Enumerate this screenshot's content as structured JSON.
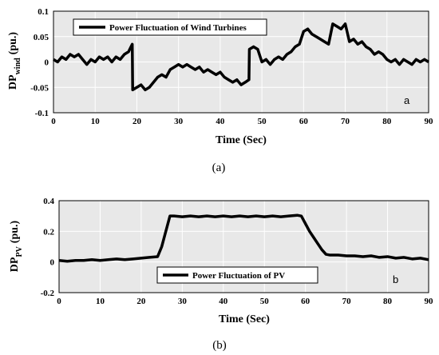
{
  "chart_data": [
    {
      "type": "line",
      "panel_letter": "a",
      "caption": "(a)",
      "xlabel": "Time (Sec)",
      "ylabel_main": "DP",
      "ylabel_sub": "wind",
      "ylabel_unit": "(pu.)",
      "xlim": [
        0,
        90
      ],
      "ylim": [
        -0.1,
        0.1
      ],
      "xticks": [
        "0",
        "10",
        "20",
        "30",
        "40",
        "50",
        "60",
        "70",
        "80",
        "90"
      ],
      "yticks": [
        "-0.1",
        "-0.05",
        "0",
        "0.05",
        "0.1"
      ],
      "grid": true,
      "legend_position": "top-left",
      "series": [
        {
          "name": "Power Fluctuation of Wind Turbines",
          "color": "#000000",
          "x": [
            0,
            1,
            2,
            3,
            4,
            5,
            6,
            7,
            8,
            9,
            10,
            11,
            12,
            13,
            14,
            15,
            16,
            17,
            18,
            18.9,
            19,
            20,
            21,
            22,
            23,
            24,
            25,
            26,
            27,
            28,
            29,
            30,
            31,
            32,
            33,
            34,
            35,
            36,
            37,
            38,
            39,
            40,
            41,
            42,
            43,
            44,
            45,
            46,
            46.9,
            47,
            48,
            49,
            50,
            51,
            52,
            53,
            54,
            55,
            56,
            57,
            58,
            59,
            60,
            61,
            62,
            63,
            64,
            65,
            66,
            67,
            68,
            69,
            70,
            71,
            72,
            73,
            74,
            75,
            76,
            77,
            78,
            79,
            80,
            81,
            82,
            83,
            84,
            85,
            86,
            87,
            88,
            89,
            90
          ],
          "y": [
            0.005,
            0.0,
            0.01,
            0.005,
            0.015,
            0.01,
            0.015,
            0.005,
            -0.005,
            0.005,
            0.0,
            0.01,
            0.005,
            0.01,
            0.0,
            0.01,
            0.005,
            0.015,
            0.02,
            0.035,
            -0.055,
            -0.05,
            -0.045,
            -0.055,
            -0.05,
            -0.04,
            -0.03,
            -0.025,
            -0.03,
            -0.015,
            -0.01,
            -0.005,
            -0.01,
            -0.005,
            -0.01,
            -0.015,
            -0.01,
            -0.02,
            -0.015,
            -0.02,
            -0.025,
            -0.02,
            -0.03,
            -0.035,
            -0.04,
            -0.035,
            -0.045,
            -0.04,
            -0.035,
            0.025,
            0.03,
            0.025,
            0.0,
            0.005,
            -0.005,
            0.005,
            0.01,
            0.005,
            0.015,
            0.02,
            0.03,
            0.035,
            0.06,
            0.065,
            0.055,
            0.05,
            0.045,
            0.04,
            0.035,
            0.075,
            0.07,
            0.065,
            0.075,
            0.04,
            0.045,
            0.035,
            0.04,
            0.03,
            0.025,
            0.015,
            0.02,
            0.015,
            0.005,
            0.0,
            0.005,
            -0.005,
            0.005,
            0.0,
            -0.005,
            0.005,
            0.0,
            0.005,
            0.0
          ]
        }
      ]
    },
    {
      "type": "line",
      "panel_letter": "b",
      "caption": "(b)",
      "xlabel": "Time (Sec)",
      "ylabel_main": "DP",
      "ylabel_sub": "PV",
      "ylabel_unit": "(pu.)",
      "xlim": [
        0,
        90
      ],
      "ylim": [
        -0.2,
        0.4
      ],
      "xticks": [
        "0",
        "10",
        "20",
        "30",
        "40",
        "50",
        "60",
        "70",
        "80",
        "90"
      ],
      "yticks": [
        "-0.2",
        "0",
        "0.2",
        "0.4"
      ],
      "grid": true,
      "legend_position": "bottom-center",
      "series": [
        {
          "name": "Power Fluctuation of PV",
          "color": "#000000",
          "x": [
            0,
            2,
            4,
            6,
            8,
            10,
            12,
            14,
            16,
            18,
            20,
            22,
            24,
            25,
            26,
            27,
            28,
            30,
            32,
            34,
            36,
            38,
            40,
            42,
            44,
            46,
            48,
            50,
            52,
            54,
            56,
            58,
            59,
            60,
            61,
            62,
            63,
            64,
            65,
            66,
            68,
            70,
            72,
            74,
            76,
            78,
            80,
            82,
            84,
            86,
            88,
            90
          ],
          "y": [
            0.01,
            0.005,
            0.01,
            0.01,
            0.015,
            0.01,
            0.015,
            0.02,
            0.015,
            0.02,
            0.025,
            0.03,
            0.035,
            0.1,
            0.2,
            0.3,
            0.3,
            0.295,
            0.3,
            0.295,
            0.3,
            0.295,
            0.3,
            0.295,
            0.3,
            0.295,
            0.3,
            0.295,
            0.3,
            0.295,
            0.3,
            0.305,
            0.3,
            0.25,
            0.2,
            0.16,
            0.12,
            0.08,
            0.05,
            0.045,
            0.045,
            0.04,
            0.04,
            0.035,
            0.04,
            0.03,
            0.035,
            0.025,
            0.03,
            0.02,
            0.025,
            0.015
          ]
        }
      ]
    }
  ]
}
